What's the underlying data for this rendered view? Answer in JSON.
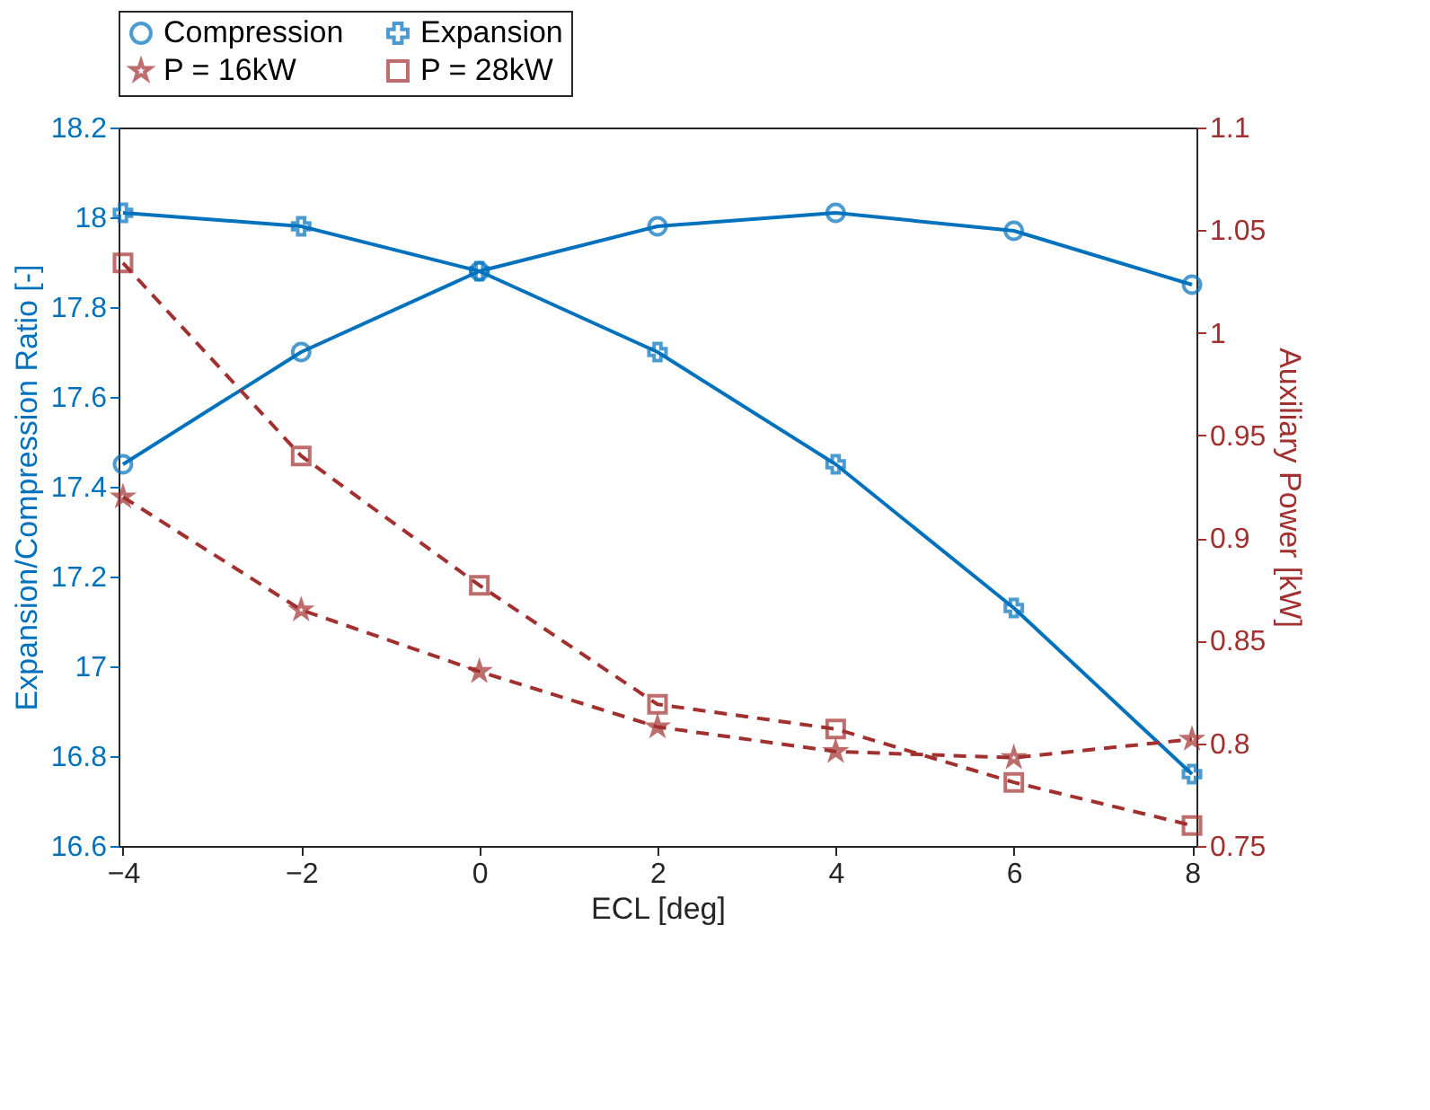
{
  "chart_data": {
    "type": "line",
    "xlabel": "ECL [deg]",
    "ylabel": "Expansion/Compression Ratio [-]",
    "y2label": "Auxiliary Power [kW]",
    "x": [
      -4,
      -2,
      0,
      2,
      4,
      6,
      8
    ],
    "series": [
      {
        "name": "Compression",
        "color": "#0072bd",
        "marker": "circle",
        "line_style": "solid",
        "values": [
          17.45,
          17.7,
          17.88,
          17.98,
          18.01,
          17.97,
          17.85
        ]
      },
      {
        "name": "Expansion",
        "color": "#0072bd",
        "marker": "cross",
        "line_style": "solid",
        "values": [
          18.01,
          17.98,
          17.88,
          17.7,
          17.45,
          17.13,
          16.76
        ]
      },
      {
        "name": "P = 16kW",
        "color": "#a2302f",
        "marker": "star",
        "line_style": "dashed",
        "axis": "y2",
        "values": [
          0.92,
          0.865,
          0.835,
          0.808,
          0.796,
          0.793,
          0.802
        ]
      },
      {
        "name": "P = 28kW",
        "color": "#a2302f",
        "marker": "square",
        "line_style": "dashed",
        "axis": "y2",
        "values": [
          1.034,
          0.94,
          0.877,
          0.819,
          0.807,
          0.781,
          0.76
        ]
      }
    ],
    "xlim": [
      -4.05,
      8.05
    ],
    "xticks": [
      -4,
      -2,
      0,
      2,
      4,
      6,
      8
    ],
    "ylim": [
      16.6,
      18.2
    ],
    "yticks": [
      16.6,
      16.8,
      17,
      17.2,
      17.4,
      17.6,
      17.8,
      18,
      18.2
    ],
    "y2lim": [
      0.75,
      1.1
    ],
    "y2ticks": [
      0.75,
      0.8,
      0.85,
      0.9,
      0.95,
      1,
      1.05,
      1.1
    ],
    "grid": false,
    "legend": "top"
  }
}
